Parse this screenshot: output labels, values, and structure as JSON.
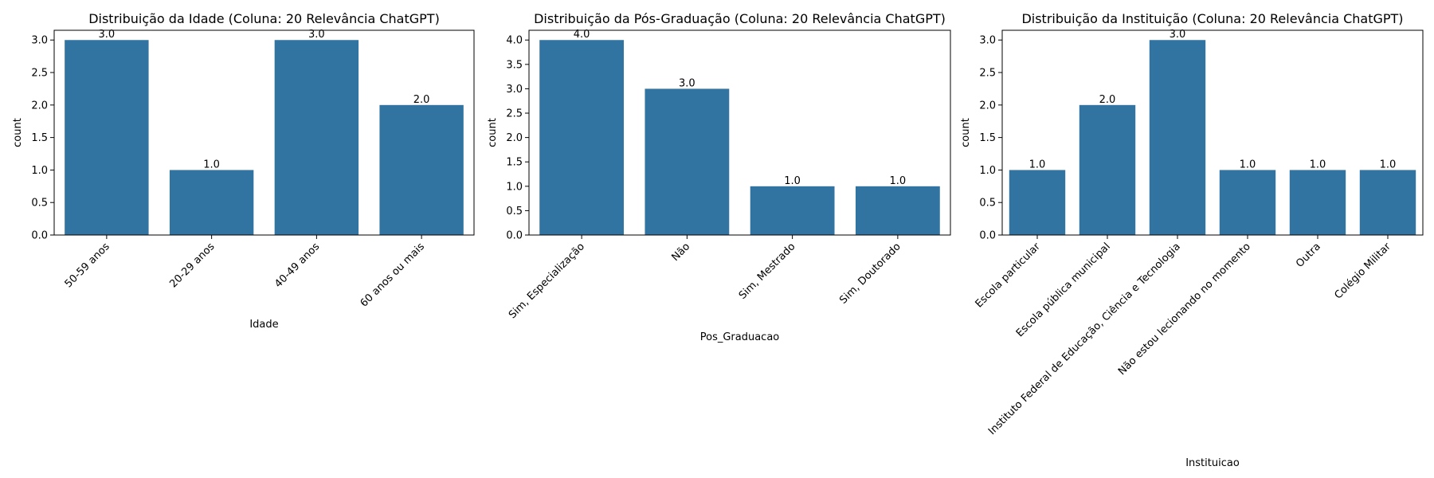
{
  "chart_data": [
    {
      "type": "bar",
      "title": "Distribuição da Idade (Coluna: 20 Relevância ChatGPT)",
      "xlabel": "Idade",
      "ylabel": "count",
      "categories": [
        "50-59 anos",
        "20-29 anos",
        "40-49 anos",
        "60 anos ou mais"
      ],
      "values": [
        3.0,
        1.0,
        3.0,
        2.0
      ],
      "data_labels": [
        "3.0",
        "1.0",
        "3.0",
        "2.0"
      ],
      "ylim": [
        0,
        3.15
      ],
      "yticks": [
        0.0,
        0.5,
        1.0,
        1.5,
        2.0,
        2.5,
        3.0
      ],
      "ytick_labels": [
        "0.0",
        "0.5",
        "1.0",
        "1.5",
        "2.0",
        "2.5",
        "3.0"
      ],
      "grid": false,
      "bar_color": "#3274a1"
    },
    {
      "type": "bar",
      "title": "Distribuição da Pós-Graduação (Coluna: 20 Relevância ChatGPT)",
      "xlabel": "Pos_Graduacao",
      "ylabel": "count",
      "categories": [
        "Sim, Especialização",
        "Não",
        "Sim, Mestrado",
        "Sim, Doutorado"
      ],
      "values": [
        4.0,
        3.0,
        1.0,
        1.0
      ],
      "data_labels": [
        "4.0",
        "3.0",
        "1.0",
        "1.0"
      ],
      "ylim": [
        0,
        4.2
      ],
      "yticks": [
        0.0,
        0.5,
        1.0,
        1.5,
        2.0,
        2.5,
        3.0,
        3.5,
        4.0
      ],
      "ytick_labels": [
        "0.0",
        "0.5",
        "1.0",
        "1.5",
        "2.0",
        "2.5",
        "3.0",
        "3.5",
        "4.0"
      ],
      "grid": false,
      "bar_color": "#3274a1"
    },
    {
      "type": "bar",
      "title": "Distribuição da Instituição (Coluna: 20 Relevância ChatGPT)",
      "xlabel": "Instituicao",
      "ylabel": "count",
      "categories": [
        "Escola particular",
        "Escola pública municipal",
        "Instituto Federal de Educação, Ciência e Tecnologia",
        "Não estou lecionando no momento",
        "Outra",
        "Colégio Militar"
      ],
      "values": [
        1.0,
        2.0,
        3.0,
        1.0,
        1.0,
        1.0
      ],
      "data_labels": [
        "1.0",
        "2.0",
        "3.0",
        "1.0",
        "1.0",
        "1.0"
      ],
      "ylim": [
        0,
        3.15
      ],
      "yticks": [
        0.0,
        0.5,
        1.0,
        1.5,
        2.0,
        2.5,
        3.0
      ],
      "ytick_labels": [
        "0.0",
        "0.5",
        "1.0",
        "1.5",
        "2.0",
        "2.5",
        "3.0"
      ],
      "grid": false,
      "bar_color": "#3274a1"
    }
  ]
}
